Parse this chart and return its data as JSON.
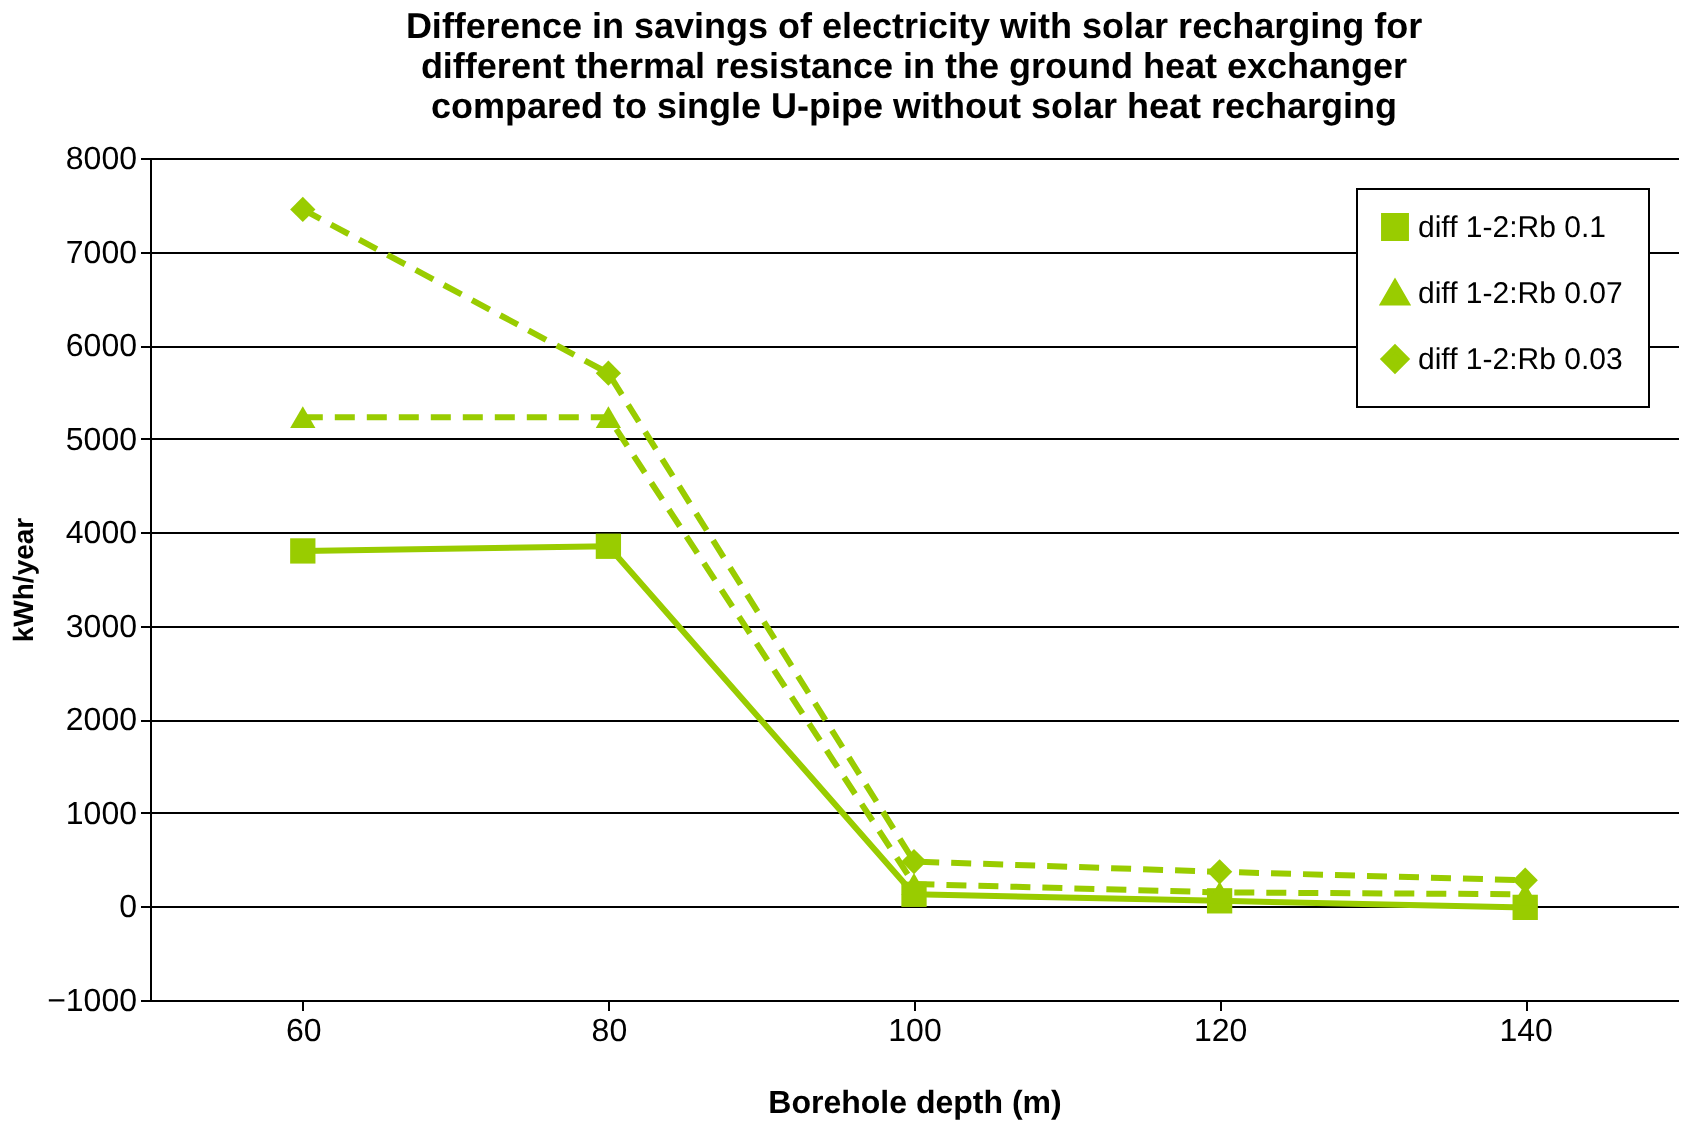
{
  "chart_data": {
    "type": "line",
    "title": "Difference in savings of electricity with solar recharging for different thermal resistance in the ground heat exchanger compared to single U-pipe without solar heat recharging",
    "xlabel": "Borehole depth (m)",
    "ylabel": "kWh/year",
    "categories": [
      "60",
      "80",
      "100",
      "120",
      "140"
    ],
    "series": [
      {
        "name": "diff 1-2:Rb 0.1",
        "color": "#99cc00",
        "marker": "square",
        "line_style": "solid",
        "values": [
          3800,
          3850,
          130,
          60,
          -10
        ]
      },
      {
        "name": "diff 1-2:Rb 0.07",
        "color": "#99cc00",
        "marker": "triangle",
        "line_style": "dashed",
        "values": [
          5230,
          5230,
          240,
          150,
          130
        ]
      },
      {
        "name": "diff 1-2:Rb 0.03",
        "color": "#99cc00",
        "marker": "diamond",
        "line_style": "dashed",
        "values": [
          7450,
          5700,
          480,
          370,
          280
        ]
      }
    ],
    "ylim": [
      -1000,
      8000
    ],
    "yticks": [
      -1000,
      0,
      1000,
      2000,
      3000,
      4000,
      5000,
      6000,
      7000,
      8000
    ],
    "grid": "y",
    "legend": "top right"
  }
}
